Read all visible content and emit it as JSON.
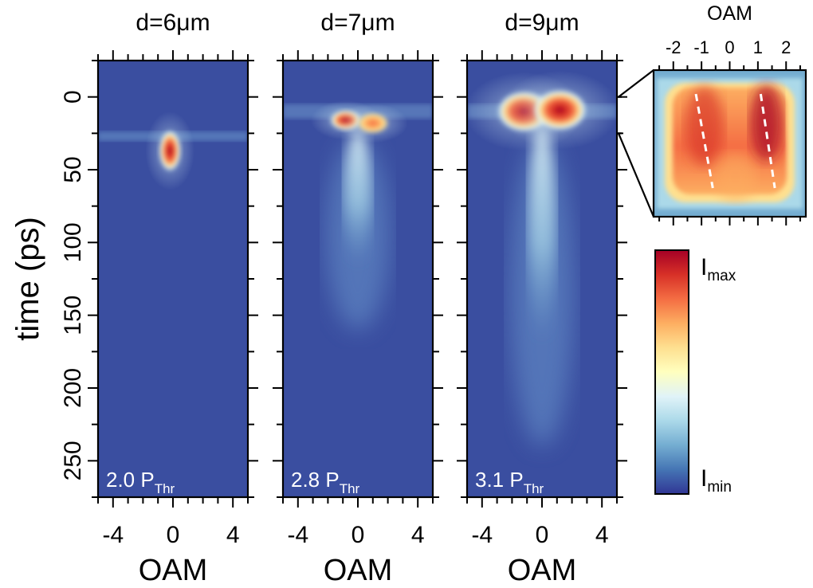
{
  "chart_data": {
    "type": "heatmap",
    "ylabel": "time (ps)",
    "ylim": [
      -25,
      275
    ],
    "yticks": [
      0,
      50,
      100,
      150,
      200,
      250
    ],
    "y_inverted": true,
    "colormap": "RdYlBu reversed",
    "panels": [
      {
        "title": "d=6μm",
        "xlabel": "OAM",
        "xlim": [
          -5,
          5
        ],
        "xticks": [
          -4,
          0,
          4
        ],
        "power_number": "2.0",
        "power_unit": "P",
        "power_sub": "Thr",
        "features": [
          {
            "kind": "bright spot",
            "oam": -0.2,
            "time_ps": 37,
            "intensity": "max"
          },
          {
            "kind": "horizontal band",
            "time_ps": 27,
            "intensity": "low"
          }
        ]
      },
      {
        "title": "d=7μm",
        "xlabel": "OAM",
        "xlim": [
          -5,
          5
        ],
        "xticks": [
          -4,
          0,
          4
        ],
        "power_number": "2.8",
        "power_unit": "P",
        "power_sub": "Thr",
        "features": [
          {
            "kind": "bright spot",
            "oam": -0.8,
            "time_ps": 16,
            "intensity": "max"
          },
          {
            "kind": "bright spot",
            "oam": 1.0,
            "time_ps": 18,
            "intensity": "high"
          },
          {
            "kind": "tail",
            "oam": 0,
            "time_ps_range": [
              30,
              160
            ],
            "intensity": "low"
          }
        ]
      },
      {
        "title": "d=9μm",
        "xlabel": "OAM",
        "xlim": [
          -5,
          5
        ],
        "xticks": [
          -4,
          0,
          4
        ],
        "power_number": "3.1",
        "power_unit": "P",
        "power_sub": "Thr",
        "features": [
          {
            "kind": "bright spot",
            "oam": -1.2,
            "time_ps": 10,
            "intensity": "max"
          },
          {
            "kind": "bright spot",
            "oam": 1.2,
            "time_ps": 9,
            "intensity": "max"
          },
          {
            "kind": "tail",
            "oam": 0,
            "time_ps_range": [
              30,
              240
            ],
            "intensity": "low"
          }
        ]
      }
    ],
    "inset": {
      "title": "OAM",
      "xticks": [
        -2,
        -1,
        0,
        1,
        2
      ],
      "xlim": [
        -2.7,
        2.7
      ],
      "time_window_ps": [
        0,
        25
      ],
      "dashed_lines": [
        {
          "oam_top": -1.2,
          "oam_bottom": -0.6
        },
        {
          "oam_top": 1.1,
          "oam_bottom": 1.6
        }
      ]
    },
    "colorbar": {
      "max_label": "I",
      "max_sub": "max",
      "min_label": "I",
      "min_sub": "min",
      "colors": [
        "#a50026",
        "#d73027",
        "#f46d43",
        "#fdae61",
        "#fee090",
        "#ffffbf",
        "#e0f3f8",
        "#abd9e9",
        "#74add1",
        "#4575b4",
        "#313695"
      ]
    }
  }
}
